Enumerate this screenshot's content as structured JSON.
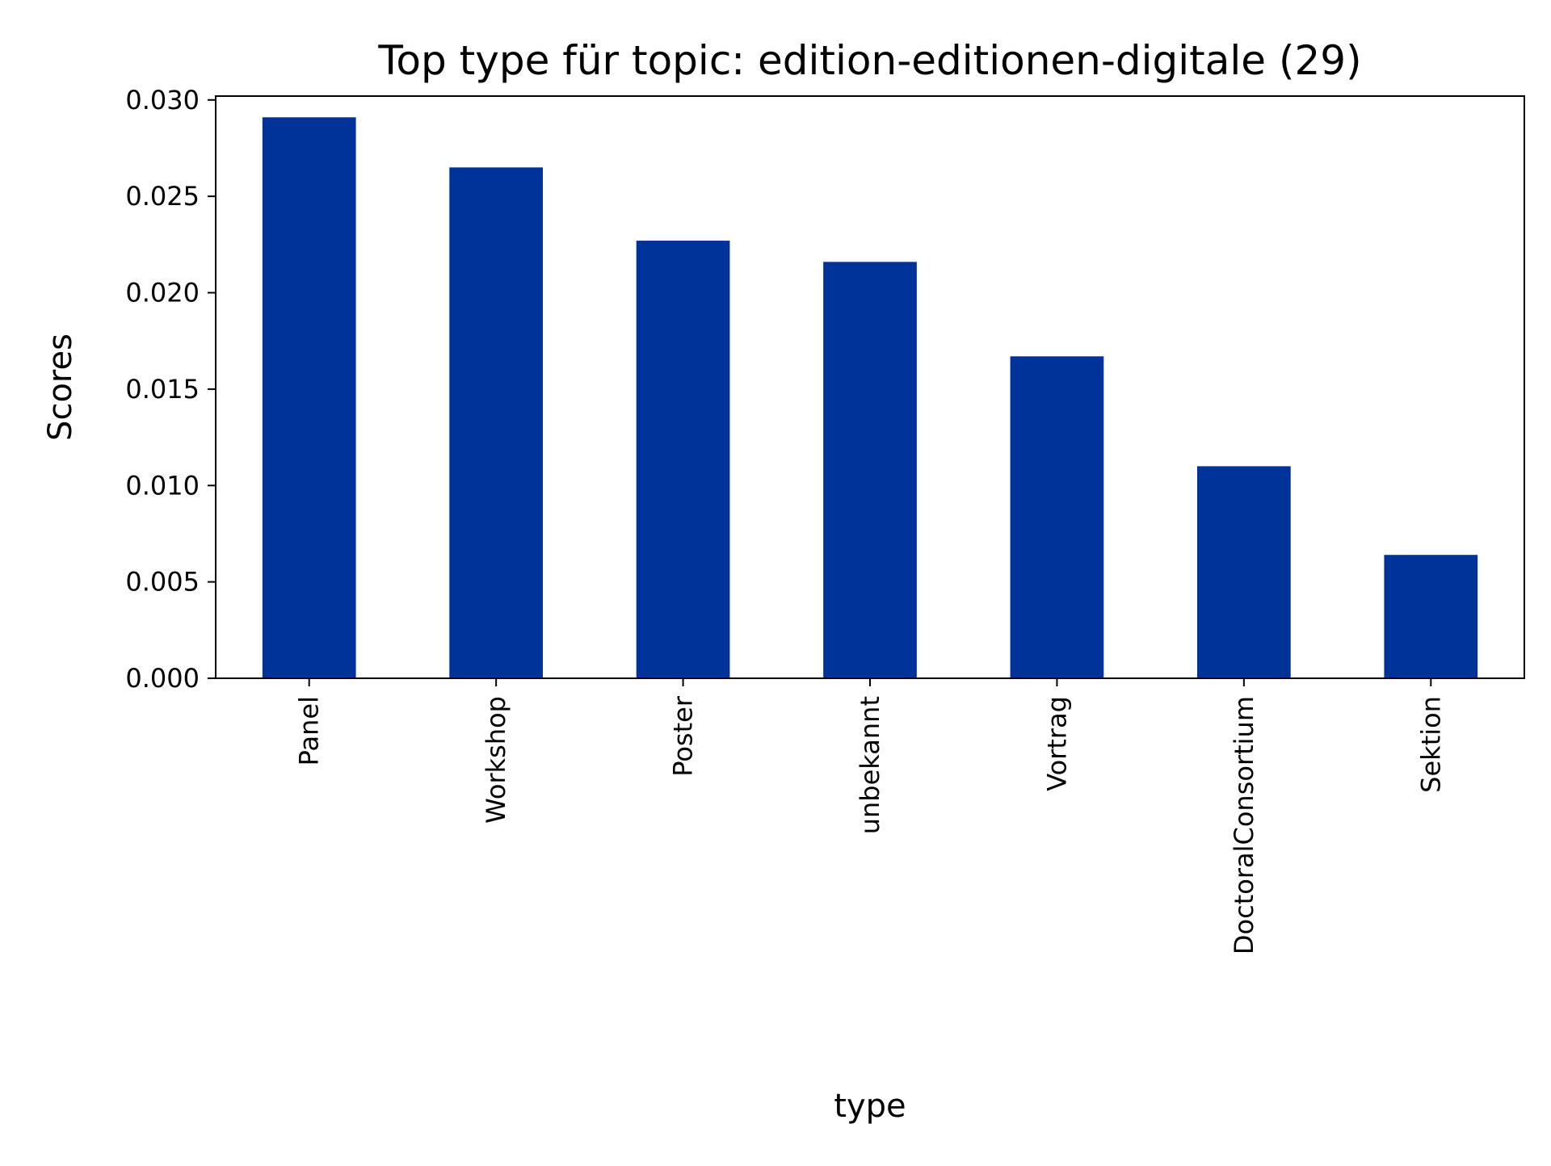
{
  "chart_data": {
    "type": "bar",
    "title": "Top type für topic: edition-editionen-digitale (29)",
    "xlabel": "type",
    "ylabel": "Scores",
    "categories": [
      "Panel",
      "Workshop",
      "Poster",
      "unbekannt",
      "Vortrag",
      "DoctoralConsortium",
      "Sektion"
    ],
    "values": [
      0.0291,
      0.0265,
      0.0227,
      0.0216,
      0.0167,
      0.011,
      0.0064
    ],
    "ylim": [
      0,
      0.0302
    ],
    "yticks": [
      0.0,
      0.005,
      0.01,
      0.015,
      0.02,
      0.025,
      0.03
    ],
    "ytick_labels": [
      "0.000",
      "0.005",
      "0.010",
      "0.015",
      "0.020",
      "0.025",
      "0.030"
    ],
    "grid": false,
    "legend": "none",
    "bar_color": "#003399"
  }
}
